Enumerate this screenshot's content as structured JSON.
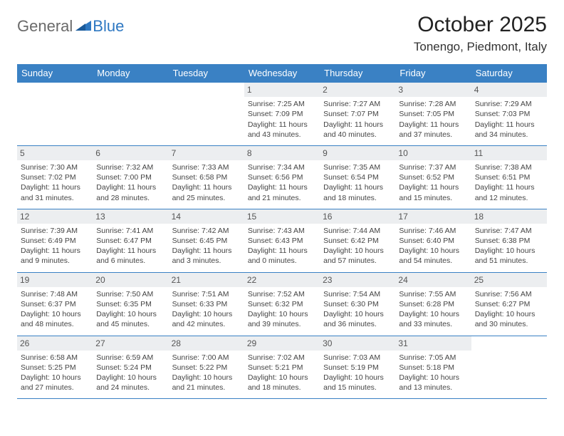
{
  "logo": {
    "general": "General",
    "blue": "Blue"
  },
  "title": "October 2025",
  "location": "Tonengo, Piedmont, Italy",
  "weekdays": [
    "Sunday",
    "Monday",
    "Tuesday",
    "Wednesday",
    "Thursday",
    "Friday",
    "Saturday"
  ],
  "colors": {
    "header_bg": "#3a81c4",
    "header_text": "#ffffff",
    "border": "#3a81c4",
    "daynum_bg": "#eceef0",
    "logo_gray": "#6a6a6a",
    "logo_blue": "#2e78c2"
  },
  "weeks": [
    [
      null,
      null,
      null,
      {
        "day": "1",
        "sunrise": "Sunrise: 7:25 AM",
        "sunset": "Sunset: 7:09 PM",
        "daylight": "Daylight: 11 hours and 43 minutes."
      },
      {
        "day": "2",
        "sunrise": "Sunrise: 7:27 AM",
        "sunset": "Sunset: 7:07 PM",
        "daylight": "Daylight: 11 hours and 40 minutes."
      },
      {
        "day": "3",
        "sunrise": "Sunrise: 7:28 AM",
        "sunset": "Sunset: 7:05 PM",
        "daylight": "Daylight: 11 hours and 37 minutes."
      },
      {
        "day": "4",
        "sunrise": "Sunrise: 7:29 AM",
        "sunset": "Sunset: 7:03 PM",
        "daylight": "Daylight: 11 hours and 34 minutes."
      }
    ],
    [
      {
        "day": "5",
        "sunrise": "Sunrise: 7:30 AM",
        "sunset": "Sunset: 7:02 PM",
        "daylight": "Daylight: 11 hours and 31 minutes."
      },
      {
        "day": "6",
        "sunrise": "Sunrise: 7:32 AM",
        "sunset": "Sunset: 7:00 PM",
        "daylight": "Daylight: 11 hours and 28 minutes."
      },
      {
        "day": "7",
        "sunrise": "Sunrise: 7:33 AM",
        "sunset": "Sunset: 6:58 PM",
        "daylight": "Daylight: 11 hours and 25 minutes."
      },
      {
        "day": "8",
        "sunrise": "Sunrise: 7:34 AM",
        "sunset": "Sunset: 6:56 PM",
        "daylight": "Daylight: 11 hours and 21 minutes."
      },
      {
        "day": "9",
        "sunrise": "Sunrise: 7:35 AM",
        "sunset": "Sunset: 6:54 PM",
        "daylight": "Daylight: 11 hours and 18 minutes."
      },
      {
        "day": "10",
        "sunrise": "Sunrise: 7:37 AM",
        "sunset": "Sunset: 6:52 PM",
        "daylight": "Daylight: 11 hours and 15 minutes."
      },
      {
        "day": "11",
        "sunrise": "Sunrise: 7:38 AM",
        "sunset": "Sunset: 6:51 PM",
        "daylight": "Daylight: 11 hours and 12 minutes."
      }
    ],
    [
      {
        "day": "12",
        "sunrise": "Sunrise: 7:39 AM",
        "sunset": "Sunset: 6:49 PM",
        "daylight": "Daylight: 11 hours and 9 minutes."
      },
      {
        "day": "13",
        "sunrise": "Sunrise: 7:41 AM",
        "sunset": "Sunset: 6:47 PM",
        "daylight": "Daylight: 11 hours and 6 minutes."
      },
      {
        "day": "14",
        "sunrise": "Sunrise: 7:42 AM",
        "sunset": "Sunset: 6:45 PM",
        "daylight": "Daylight: 11 hours and 3 minutes."
      },
      {
        "day": "15",
        "sunrise": "Sunrise: 7:43 AM",
        "sunset": "Sunset: 6:43 PM",
        "daylight": "Daylight: 11 hours and 0 minutes."
      },
      {
        "day": "16",
        "sunrise": "Sunrise: 7:44 AM",
        "sunset": "Sunset: 6:42 PM",
        "daylight": "Daylight: 10 hours and 57 minutes."
      },
      {
        "day": "17",
        "sunrise": "Sunrise: 7:46 AM",
        "sunset": "Sunset: 6:40 PM",
        "daylight": "Daylight: 10 hours and 54 minutes."
      },
      {
        "day": "18",
        "sunrise": "Sunrise: 7:47 AM",
        "sunset": "Sunset: 6:38 PM",
        "daylight": "Daylight: 10 hours and 51 minutes."
      }
    ],
    [
      {
        "day": "19",
        "sunrise": "Sunrise: 7:48 AM",
        "sunset": "Sunset: 6:37 PM",
        "daylight": "Daylight: 10 hours and 48 minutes."
      },
      {
        "day": "20",
        "sunrise": "Sunrise: 7:50 AM",
        "sunset": "Sunset: 6:35 PM",
        "daylight": "Daylight: 10 hours and 45 minutes."
      },
      {
        "day": "21",
        "sunrise": "Sunrise: 7:51 AM",
        "sunset": "Sunset: 6:33 PM",
        "daylight": "Daylight: 10 hours and 42 minutes."
      },
      {
        "day": "22",
        "sunrise": "Sunrise: 7:52 AM",
        "sunset": "Sunset: 6:32 PM",
        "daylight": "Daylight: 10 hours and 39 minutes."
      },
      {
        "day": "23",
        "sunrise": "Sunrise: 7:54 AM",
        "sunset": "Sunset: 6:30 PM",
        "daylight": "Daylight: 10 hours and 36 minutes."
      },
      {
        "day": "24",
        "sunrise": "Sunrise: 7:55 AM",
        "sunset": "Sunset: 6:28 PM",
        "daylight": "Daylight: 10 hours and 33 minutes."
      },
      {
        "day": "25",
        "sunrise": "Sunrise: 7:56 AM",
        "sunset": "Sunset: 6:27 PM",
        "daylight": "Daylight: 10 hours and 30 minutes."
      }
    ],
    [
      {
        "day": "26",
        "sunrise": "Sunrise: 6:58 AM",
        "sunset": "Sunset: 5:25 PM",
        "daylight": "Daylight: 10 hours and 27 minutes."
      },
      {
        "day": "27",
        "sunrise": "Sunrise: 6:59 AM",
        "sunset": "Sunset: 5:24 PM",
        "daylight": "Daylight: 10 hours and 24 minutes."
      },
      {
        "day": "28",
        "sunrise": "Sunrise: 7:00 AM",
        "sunset": "Sunset: 5:22 PM",
        "daylight": "Daylight: 10 hours and 21 minutes."
      },
      {
        "day": "29",
        "sunrise": "Sunrise: 7:02 AM",
        "sunset": "Sunset: 5:21 PM",
        "daylight": "Daylight: 10 hours and 18 minutes."
      },
      {
        "day": "30",
        "sunrise": "Sunrise: 7:03 AM",
        "sunset": "Sunset: 5:19 PM",
        "daylight": "Daylight: 10 hours and 15 minutes."
      },
      {
        "day": "31",
        "sunrise": "Sunrise: 7:05 AM",
        "sunset": "Sunset: 5:18 PM",
        "daylight": "Daylight: 10 hours and 13 minutes."
      },
      null
    ]
  ]
}
